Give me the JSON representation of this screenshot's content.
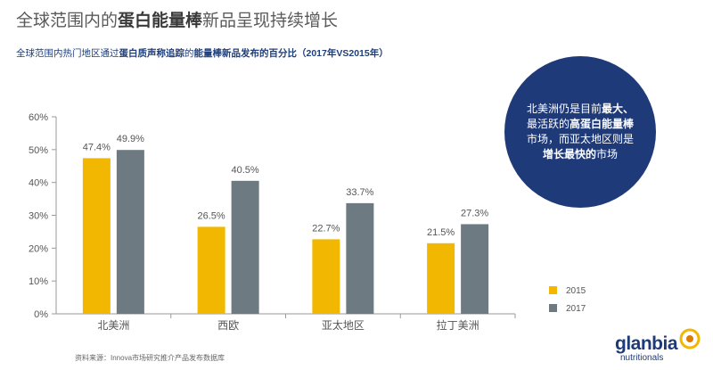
{
  "title": {
    "part1": "全球范围内的",
    "part2": "蛋白能量棒",
    "part3": "新品呈现持续增长"
  },
  "subtitle": {
    "p1": "全球范围内热门地区通过",
    "p2": "蛋白质声称追踪",
    "p3": "的",
    "p4": "能量棒新品发布的百分比（2017年VS2015年）"
  },
  "callout": {
    "l1a": "北美洲仍是目前",
    "l1b": "最大、",
    "l2a": "最活跃的",
    "l2b": "高蛋白能量棒",
    "l3": "市场，而亚太地区则是",
    "l4a": "增长最快的",
    "l4b": "市场"
  },
  "source": "资料来源：Innova市场研究推介产品发布数据库",
  "logo": {
    "word": "glanbia",
    "sub": "nutritionals"
  },
  "colors": {
    "series_2015": "#f2b700",
    "series_2017": "#6d7a82",
    "callout_bg": "#1f3a78"
  },
  "chart_data": {
    "type": "bar",
    "categories": [
      "北美洲",
      "西欧",
      "亚太地区",
      "拉丁美洲"
    ],
    "series": [
      {
        "name": "2015",
        "values": [
          47.4,
          26.5,
          22.7,
          21.5
        ],
        "labels": [
          "47.4%",
          "26.5%",
          "22.7%",
          "21.5%"
        ]
      },
      {
        "name": "2017",
        "values": [
          49.9,
          40.5,
          33.7,
          27.3
        ],
        "labels": [
          "49.9%",
          "40.5%",
          "33.7%",
          "27.3%"
        ]
      }
    ],
    "yticks": [
      "0%",
      "10%",
      "20%",
      "30%",
      "40%",
      "50%",
      "60%"
    ],
    "ylim": [
      0,
      60
    ],
    "grid": false,
    "legend": "bottom-right"
  }
}
